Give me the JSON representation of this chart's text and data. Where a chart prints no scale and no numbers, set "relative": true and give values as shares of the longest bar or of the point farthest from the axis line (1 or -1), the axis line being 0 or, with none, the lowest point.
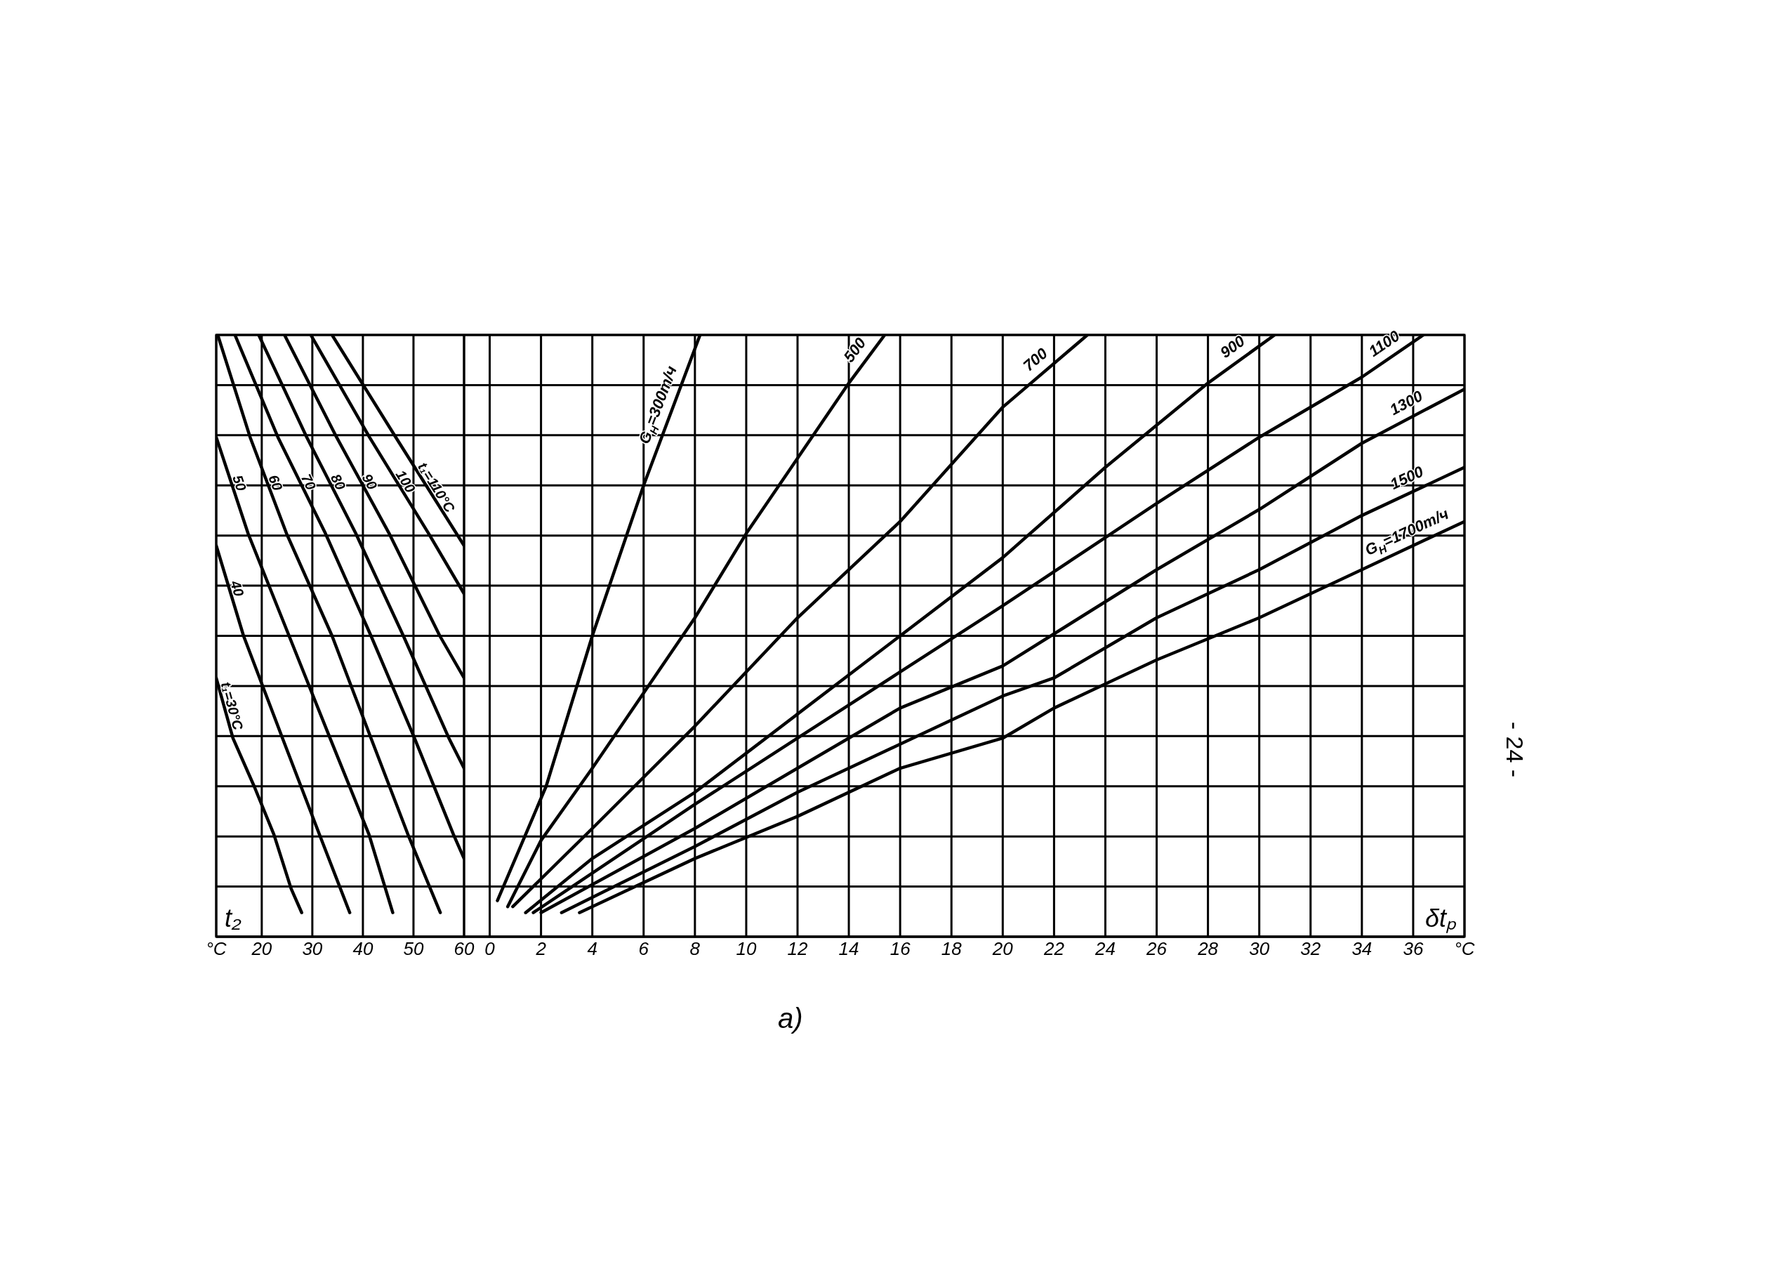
{
  "chart_data": [
    {
      "type": "line",
      "relative": true,
      "xlabel": "t₂",
      "xlim": [
        11,
        60
      ],
      "xticks": [
        {
          "value": 11,
          "label": "°C"
        },
        20,
        30,
        40,
        50,
        60
      ],
      "grid": true,
      "series": [
        {
          "name": "t₁=30°C",
          "color": "#000000",
          "x": [
            11,
            14.3,
            18.5,
            22.4,
            25.8,
            27.9
          ],
          "values": [
            0.43,
            0.33,
            0.25,
            0.17,
            0.08,
            0.04
          ]
        },
        {
          "name": "40",
          "color": "#000000",
          "x": [
            11,
            16.4,
            24.1,
            31.4,
            37.4
          ],
          "values": [
            0.65,
            0.5,
            0.33,
            0.17,
            0.04
          ]
        },
        {
          "name": "50",
          "color": "#000000",
          "x": [
            11,
            17.3,
            25.4,
            33.5,
            41.2,
            45.9
          ],
          "values": [
            0.83,
            0.67,
            0.5,
            0.33,
            0.17,
            0.04
          ]
        },
        {
          "name": "60",
          "color": "#000000",
          "x": [
            11.3,
            17.7,
            24.9,
            33.9,
            41.6,
            48.9,
            55.3
          ],
          "values": [
            1,
            0.83,
            0.67,
            0.5,
            0.33,
            0.17,
            0.04
          ]
        },
        {
          "name": "70",
          "color": "#000000",
          "x": [
            14.7,
            23.2,
            32.6,
            41.6,
            50.2,
            57.9,
            60
          ],
          "values": [
            1,
            0.83,
            0.67,
            0.5,
            0.33,
            0.17,
            0.13
          ]
        },
        {
          "name": "80",
          "color": "#000000",
          "x": [
            19.4,
            28.9,
            38.6,
            48,
            57,
            60
          ],
          "values": [
            1,
            0.83,
            0.67,
            0.5,
            0.33,
            0.28
          ]
        },
        {
          "name": "90",
          "color": "#000000",
          "x": [
            24.5,
            34.8,
            45.2,
            55.2,
            60
          ],
          "values": [
            1,
            0.83,
            0.67,
            0.5,
            0.43
          ]
        },
        {
          "name": "100",
          "color": "#000000",
          "x": [
            29.7,
            41.3,
            53,
            60
          ],
          "values": [
            1,
            0.83,
            0.67,
            0.57
          ]
        },
        {
          "name": "t₁=110°C",
          "color": "#000000",
          "x": [
            33.9,
            46.5,
            60
          ],
          "values": [
            1,
            0.83,
            0.65
          ]
        }
      ]
    },
    {
      "type": "line",
      "relative": true,
      "xlabel": "δtₚ",
      "xlim": [
        -1,
        38
      ],
      "xticks": [
        0,
        2,
        4,
        6,
        8,
        10,
        12,
        14,
        16,
        18,
        20,
        22,
        24,
        26,
        28,
        30,
        32,
        34,
        36,
        {
          "value": 38,
          "label": "°C"
        }
      ],
      "grid": true,
      "annotations": [
        "а)",
        "- 24 -"
      ],
      "series": [
        {
          "name": "G$_{Н}$=300т/ч",
          "color": "#000000",
          "x": [
            0.3,
            2.2,
            4,
            6,
            8.2
          ],
          "values": [
            0.06,
            0.25,
            0.5,
            0.75,
            1
          ]
        },
        {
          "name": "500",
          "color": "#000000",
          "x": [
            0.7,
            2,
            4,
            8,
            10,
            14,
            15.4
          ],
          "values": [
            0.05,
            0.16,
            0.28,
            0.53,
            0.67,
            0.92,
            1
          ]
        },
        {
          "name": "700",
          "color": "#000000",
          "x": [
            0.9,
            4,
            8,
            12,
            16,
            20,
            23.3
          ],
          "values": [
            0.05,
            0.18,
            0.35,
            0.53,
            0.69,
            0.88,
            1
          ]
        },
        {
          "name": "900",
          "color": "#000000",
          "x": [
            1.4,
            4,
            8,
            12,
            16,
            20,
            24,
            28,
            30.6
          ],
          "values": [
            0.04,
            0.13,
            0.24,
            0.37,
            0.5,
            0.63,
            0.78,
            0.92,
            1
          ]
        },
        {
          "name": "1100",
          "color": "#000000",
          "x": [
            1.7,
            8,
            12,
            16,
            20,
            26,
            30,
            34,
            36.4
          ],
          "values": [
            0.04,
            0.22,
            0.33,
            0.44,
            0.55,
            0.72,
            0.83,
            0.93,
            1
          ]
        },
        {
          "name": "1300",
          "color": "#000000",
          "x": [
            2,
            8,
            12,
            16,
            20,
            26,
            30,
            34,
            38
          ],
          "values": [
            0.04,
            0.18,
            0.28,
            0.38,
            0.45,
            0.61,
            0.71,
            0.82,
            0.91
          ]
        },
        {
          "name": "1500",
          "color": "#000000",
          "x": [
            2.8,
            8,
            12,
            16,
            20,
            22,
            26,
            30,
            34,
            38
          ],
          "values": [
            0.04,
            0.15,
            0.24,
            0.32,
            0.4,
            0.43,
            0.53,
            0.61,
            0.7,
            0.78
          ]
        },
        {
          "name": "G$_{Н}$=1700т/ч",
          "color": "#000000",
          "x": [
            3.5,
            8,
            12,
            16,
            20,
            22,
            24,
            26,
            30,
            34,
            38
          ],
          "values": [
            0.04,
            0.13,
            0.2,
            0.28,
            0.33,
            0.38,
            0.42,
            0.46,
            0.53,
            0.61,
            0.69
          ]
        }
      ]
    }
  ]
}
